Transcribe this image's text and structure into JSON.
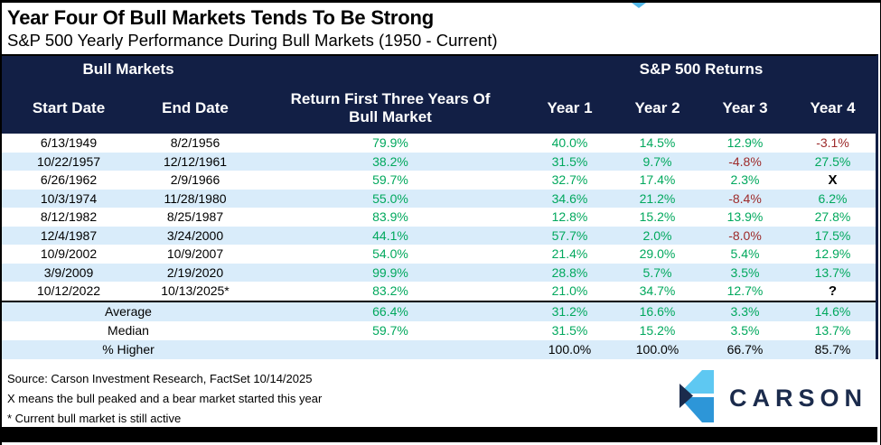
{
  "page": {
    "title": "Year Four Of Bull Markets Tends To Be Strong",
    "subtitle": "S&P 500 Yearly Performance During Bull Markets (1950 - Current)"
  },
  "colors": {
    "navy": "#121f45",
    "green": "#00a85d",
    "red": "#9d2a2a",
    "rowalt": "#d9ecfa",
    "logo_light": "#5ec8f2",
    "logo_mid": "#2d96d8",
    "logo_navy": "#1b2b4c"
  },
  "chart_data": {
    "type": "table",
    "title": "Year Four Of Bull Markets Tends To Be Strong",
    "subtitle": "S&P 500 Yearly Performance During Bull Markets (1950 - Current)",
    "group_headers": [
      "Bull Markets",
      "S&P 500 Returns"
    ],
    "columns": [
      "Start Date",
      "End Date",
      "Return First Three Years Of Bull Market",
      "Year 1",
      "Year 2",
      "Year 3",
      "Year 4"
    ],
    "rows": [
      [
        "6/13/1949",
        "8/2/1956",
        "79.9%",
        "40.0%",
        "14.5%",
        "12.9%",
        "-3.1%"
      ],
      [
        "10/22/1957",
        "12/12/1961",
        "38.2%",
        "31.5%",
        "9.7%",
        "-4.8%",
        "27.5%"
      ],
      [
        "6/26/1962",
        "2/9/1966",
        "59.7%",
        "32.7%",
        "17.4%",
        "2.3%",
        "X"
      ],
      [
        "10/3/1974",
        "11/28/1980",
        "55.0%",
        "34.6%",
        "21.2%",
        "-8.4%",
        "6.2%"
      ],
      [
        "8/12/1982",
        "8/25/1987",
        "83.9%",
        "12.8%",
        "15.2%",
        "13.9%",
        "27.8%"
      ],
      [
        "12/4/1987",
        "3/24/2000",
        "44.1%",
        "57.7%",
        "2.0%",
        "-8.0%",
        "17.5%"
      ],
      [
        "10/9/2002",
        "10/9/2007",
        "54.0%",
        "21.4%",
        "29.0%",
        "5.4%",
        "12.9%"
      ],
      [
        "3/9/2009",
        "2/19/2020",
        "99.9%",
        "28.8%",
        "5.7%",
        "3.5%",
        "13.7%"
      ],
      [
        "10/12/2022",
        "10/13/2025*",
        "83.2%",
        "21.0%",
        "34.7%",
        "12.7%",
        "?"
      ]
    ],
    "summary": [
      {
        "label": "Average",
        "values": [
          "66.4%",
          "31.2%",
          "16.6%",
          "3.3%",
          "14.6%"
        ],
        "value_color": "green"
      },
      {
        "label": "Median",
        "values": [
          "59.7%",
          "31.5%",
          "15.2%",
          "3.5%",
          "13.7%"
        ],
        "value_color": "green"
      },
      {
        "label": "% Higher",
        "values": [
          "",
          "100.0%",
          "100.0%",
          "66.7%",
          "85.7%"
        ],
        "value_color": "black"
      }
    ]
  },
  "footer": {
    "source": "Source: Carson Investment Research, FactSet 10/14/2025",
    "note_x": "X means the bull peaked and a bear market started this year",
    "note_asterisk": "* Current bull market is still active",
    "logo_text": "CARSON",
    "logo_icon": "carson-chevron-icon"
  }
}
